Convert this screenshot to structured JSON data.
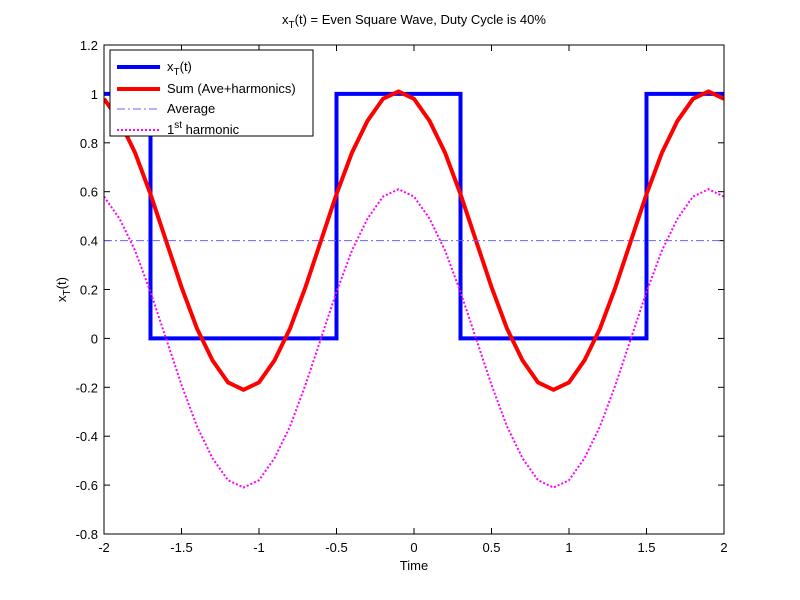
{
  "chart_data": {
    "type": "line",
    "title": [
      "x",
      {
        "text": "T",
        "shift": "sub"
      },
      "(t) = Even Square Wave, Duty Cycle is 40%"
    ],
    "xlabel": "Time",
    "ylabel": [
      "x",
      {
        "text": "T",
        "shift": "sub"
      },
      "(t)"
    ],
    "xlim": [
      -2,
      2
    ],
    "ylim": [
      -0.8,
      1.2
    ],
    "xticks": [
      -2,
      -1.5,
      -1,
      -0.5,
      0,
      0.5,
      1,
      1.5,
      2
    ],
    "yticks": [
      -0.8,
      -0.6,
      -0.4,
      -0.2,
      0,
      0.2,
      0.4,
      0.6,
      0.8,
      1,
      1.2
    ],
    "grid": false,
    "legend": "upper left",
    "series": [
      {
        "name": [
          "x",
          {
            "text": "T",
            "shift": "sub"
          },
          "(t)"
        ],
        "color": "#0000ff",
        "style": "solid",
        "width": 4,
        "x": [
          -2,
          -1.7,
          -1.7,
          -0.5,
          -0.5,
          0.3,
          0.3,
          1.5,
          1.5,
          2
        ],
        "values": [
          1,
          1,
          0,
          0,
          1,
          1,
          0,
          0,
          1,
          1
        ]
      },
      {
        "name": "Sum (Ave+harmonics)",
        "color": "#ff0000",
        "style": "solid",
        "width": 4,
        "x": [
          -2,
          -1.9,
          -1.8,
          -1.7,
          -1.6,
          -1.5,
          -1.4,
          -1.3,
          -1.2,
          -1.1,
          -1,
          -0.9,
          -0.8,
          -0.7,
          -0.6,
          -0.5,
          -0.4,
          -0.3,
          -0.2,
          -0.1,
          0,
          0.1,
          0.2,
          0.3,
          0.4,
          0.5,
          0.6,
          0.7,
          0.8,
          0.9,
          1,
          1.1,
          1.2,
          1.3,
          1.4,
          1.5,
          1.6,
          1.7,
          1.8,
          1.9,
          2
        ],
        "values": [
          0.98,
          0.89,
          0.76,
          0.59,
          0.4,
          0.21,
          0.04,
          -0.09,
          -0.18,
          -0.21,
          -0.18,
          -0.09,
          0.04,
          0.21,
          0.4,
          0.59,
          0.76,
          0.89,
          0.98,
          1.01,
          0.98,
          0.89,
          0.76,
          0.59,
          0.4,
          0.21,
          0.04,
          -0.09,
          -0.18,
          -0.21,
          -0.18,
          -0.09,
          0.04,
          0.21,
          0.4,
          0.59,
          0.76,
          0.89,
          0.98,
          1.01,
          0.98
        ]
      },
      {
        "name": "Average",
        "color": "#6666ff",
        "style": "dashdot",
        "width": 1,
        "x": [
          -2,
          2
        ],
        "values": [
          0.4,
          0.4
        ]
      },
      {
        "name": [
          "1",
          {
            "text": "st",
            "shift": "sup"
          },
          " harmonic"
        ],
        "color": "#ff00ff",
        "style": "dotted",
        "width": 2,
        "x": [
          -2,
          -1.9,
          -1.8,
          -1.7,
          -1.6,
          -1.5,
          -1.4,
          -1.3,
          -1.2,
          -1.1,
          -1,
          -0.9,
          -0.8,
          -0.7,
          -0.6,
          -0.5,
          -0.4,
          -0.3,
          -0.2,
          -0.1,
          0,
          0.1,
          0.2,
          0.3,
          0.4,
          0.5,
          0.6,
          0.7,
          0.8,
          0.9,
          1,
          1.1,
          1.2,
          1.3,
          1.4,
          1.5,
          1.6,
          1.7,
          1.8,
          1.9,
          2
        ],
        "values": [
          0.58,
          0.49,
          0.36,
          0.19,
          0,
          -0.19,
          -0.36,
          -0.49,
          -0.58,
          -0.61,
          -0.58,
          -0.49,
          -0.36,
          -0.19,
          0,
          0.19,
          0.36,
          0.49,
          0.58,
          0.61,
          0.58,
          0.49,
          0.36,
          0.19,
          0,
          -0.19,
          -0.36,
          -0.49,
          -0.58,
          -0.61,
          -0.58,
          -0.49,
          -0.36,
          -0.19,
          0,
          0.19,
          0.36,
          0.49,
          0.58,
          0.61,
          0.58
        ]
      }
    ]
  }
}
